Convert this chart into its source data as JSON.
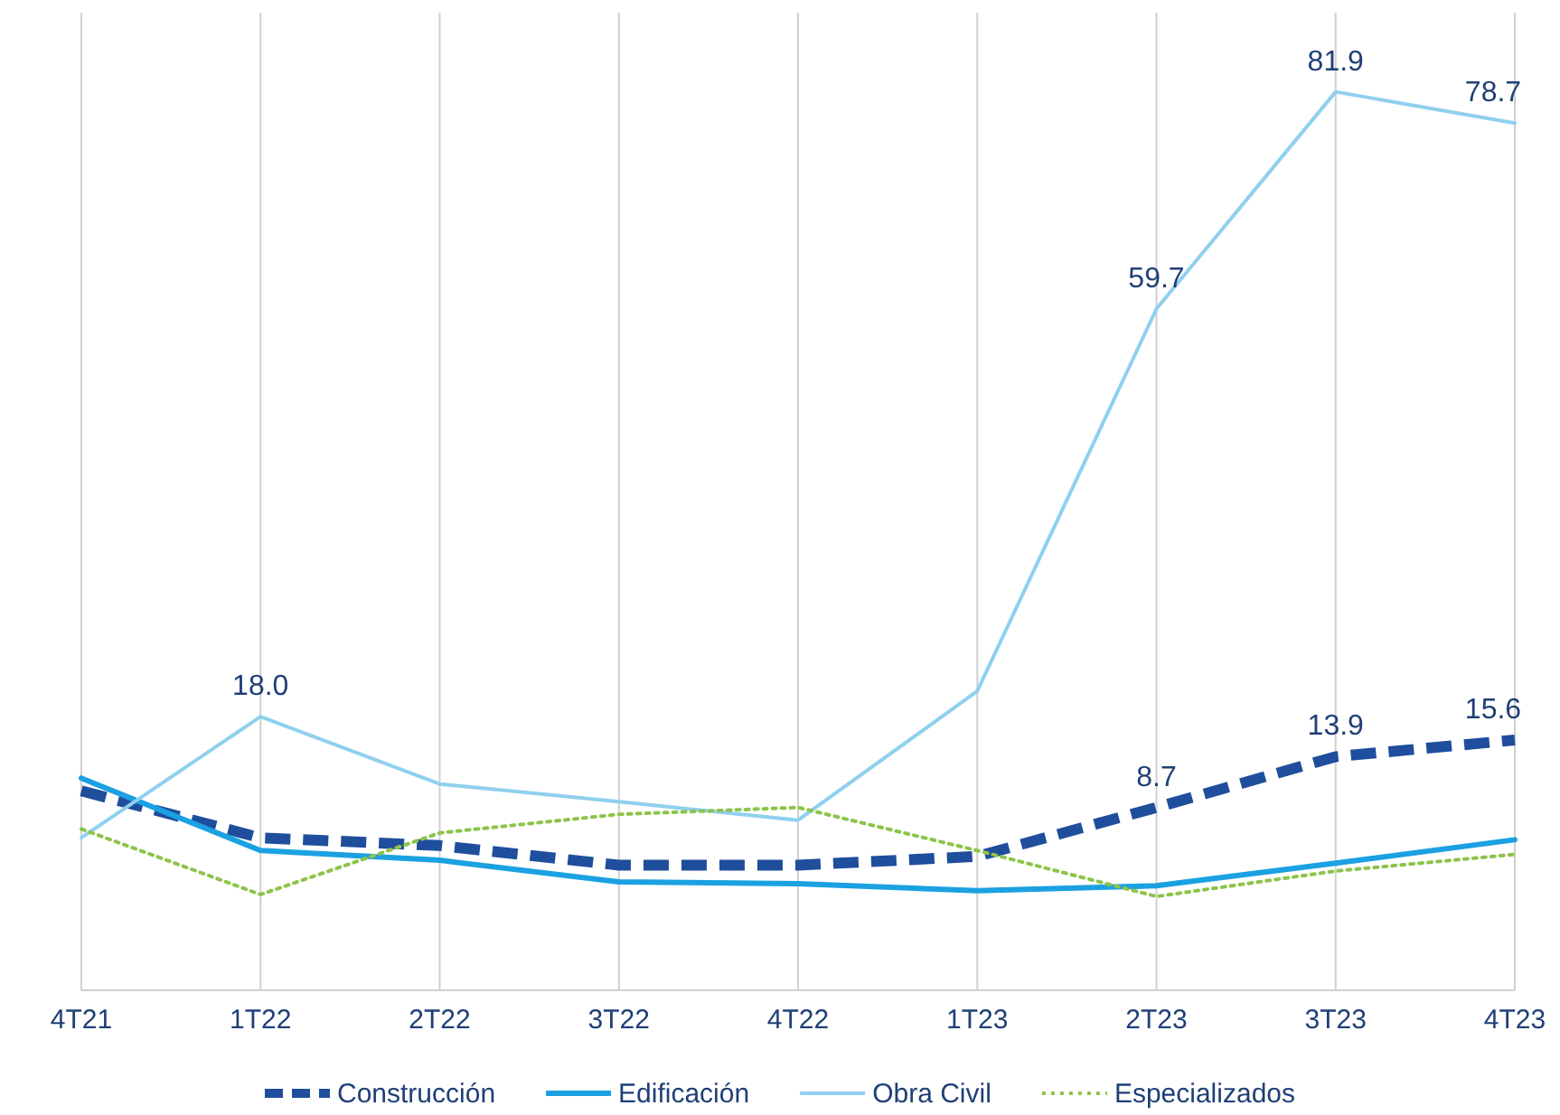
{
  "chart_data": {
    "type": "line",
    "categories": [
      "4T21",
      "1T22",
      "2T22",
      "3T22",
      "4T22",
      "1T23",
      "2T23",
      "3T23",
      "4T23"
    ],
    "ylim": [
      -10,
      90
    ],
    "tick_labels": "x",
    "grid": "x",
    "legend": "bottom",
    "marker": "none",
    "series": [
      {
        "name": "Construcción",
        "color": "#1f4e9c",
        "line_style": "dashed",
        "values": [
          10.4,
          5.6,
          4.8,
          2.8,
          2.8,
          3.7,
          8.7,
          13.9,
          15.6
        ],
        "value_labels": [
          null,
          null,
          null,
          null,
          null,
          null,
          "8.7",
          "13.9",
          "15.6"
        ]
      },
      {
        "name": "Edificación",
        "color": "#1ba1e2",
        "line_style": "solid",
        "values": [
          11.7,
          4.3,
          3.3,
          1.1,
          0.9,
          0.2,
          0.7,
          3.0,
          5.4
        ]
      },
      {
        "name": "Obra Civil",
        "color": "#8fd0ee",
        "line_style": "solid",
        "values": [
          5.6,
          18.0,
          11.1,
          9.3,
          7.4,
          20.6,
          59.7,
          81.9,
          78.7
        ],
        "value_labels": [
          null,
          "18.0",
          null,
          null,
          null,
          null,
          "59.7",
          "81.9",
          "78.7"
        ]
      },
      {
        "name": "Especializados",
        "color": "#8dc44a",
        "line_style": "dotted",
        "values": [
          6.5,
          -0.2,
          6.1,
          8.0,
          8.7,
          4.3,
          -0.4,
          2.2,
          3.9
        ]
      }
    ]
  }
}
